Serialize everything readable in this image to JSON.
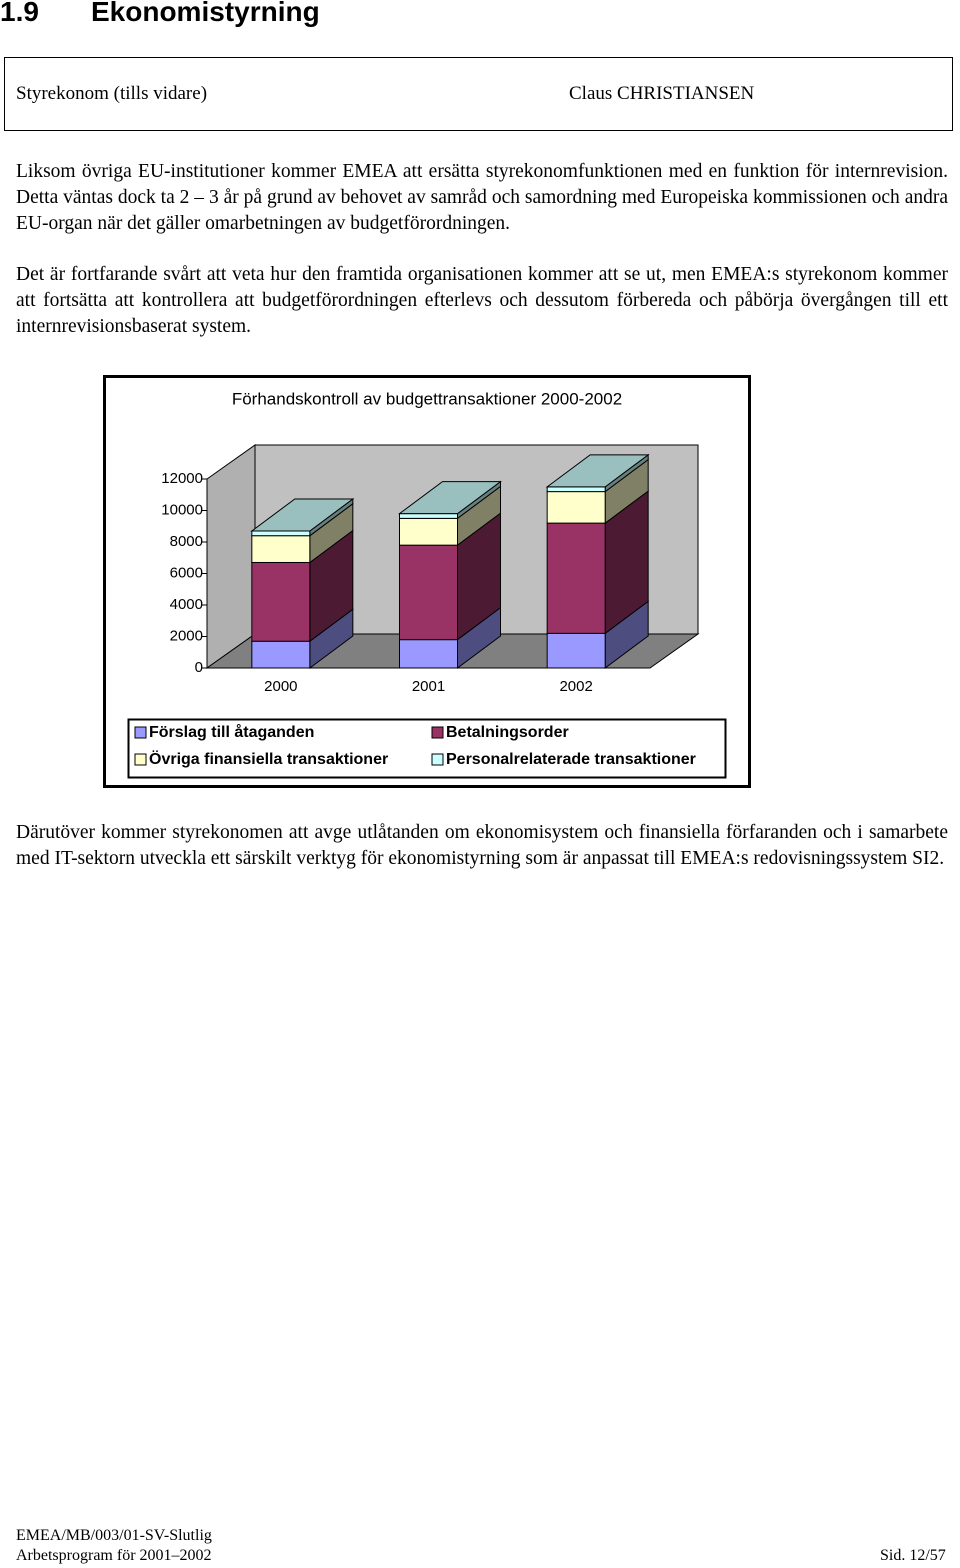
{
  "header": {
    "section_number": "1.9",
    "section_title": "Ekonomistyrning",
    "left": "Styrekonom (tills vidare)",
    "right": "Claus CHRISTIANSEN"
  },
  "paragraphs": [
    "Liksom övriga EU-institutioner kommer EMEA att ersätta styrekonomfunktionen med en funktion för internrevision. Detta väntas dock ta 2 – 3 år på grund av behovet av samråd och samordning med Europeiska kommissionen och andra EU-organ när det gäller omarbetningen av budgetförordningen.",
    "Det är fortfarande svårt att veta hur den framtida organisationen kommer att se ut, men EMEA:s styrekonom kommer att fortsätta att kontrollera att budgetförordningen efterlevs och dessutom förbereda och påbörja övergången till ett internrevisionsbaserat system.",
    "Därutöver kommer styrekonomen att avge utlåtanden om ekonomisystem och finansiella förfaranden och i samarbete med IT-sektorn utveckla ett särskilt verktyg för ekonomistyrning som är anpassat till EMEA:s redovisningssystem SI2."
  ],
  "chart_data": {
    "type": "bar3d-stacked",
    "title": "Förhandskontroll av budgettransaktioner 2000-2002",
    "categories": [
      "2000",
      "2001",
      "2002"
    ],
    "series": [
      {
        "name": "Förslag till åtaganden",
        "color": "#9999ff",
        "values": [
          1700,
          1800,
          2200
        ]
      },
      {
        "name": "Betalningsorder",
        "color": "#993366",
        "values": [
          5000,
          6000,
          7000
        ]
      },
      {
        "name": "Övriga finansiella transaktioner",
        "color": "#ffffcc",
        "values": [
          1700,
          1700,
          2000
        ]
      },
      {
        "name": "Personalrelaterade transaktioner",
        "color": "#ccffff",
        "values": [
          300,
          300,
          300
        ]
      }
    ],
    "ylim": [
      0,
      12000
    ],
    "yticks": [
      0,
      2000,
      4000,
      6000,
      8000,
      10000,
      12000
    ],
    "grid": false,
    "legend": "bottom"
  },
  "footer": {
    "doc_id": "EMEA/MB/003/01-SV-Slutlig",
    "program": "Arbetsprogram för 2001–2002",
    "page": "Sid. 12/57"
  }
}
